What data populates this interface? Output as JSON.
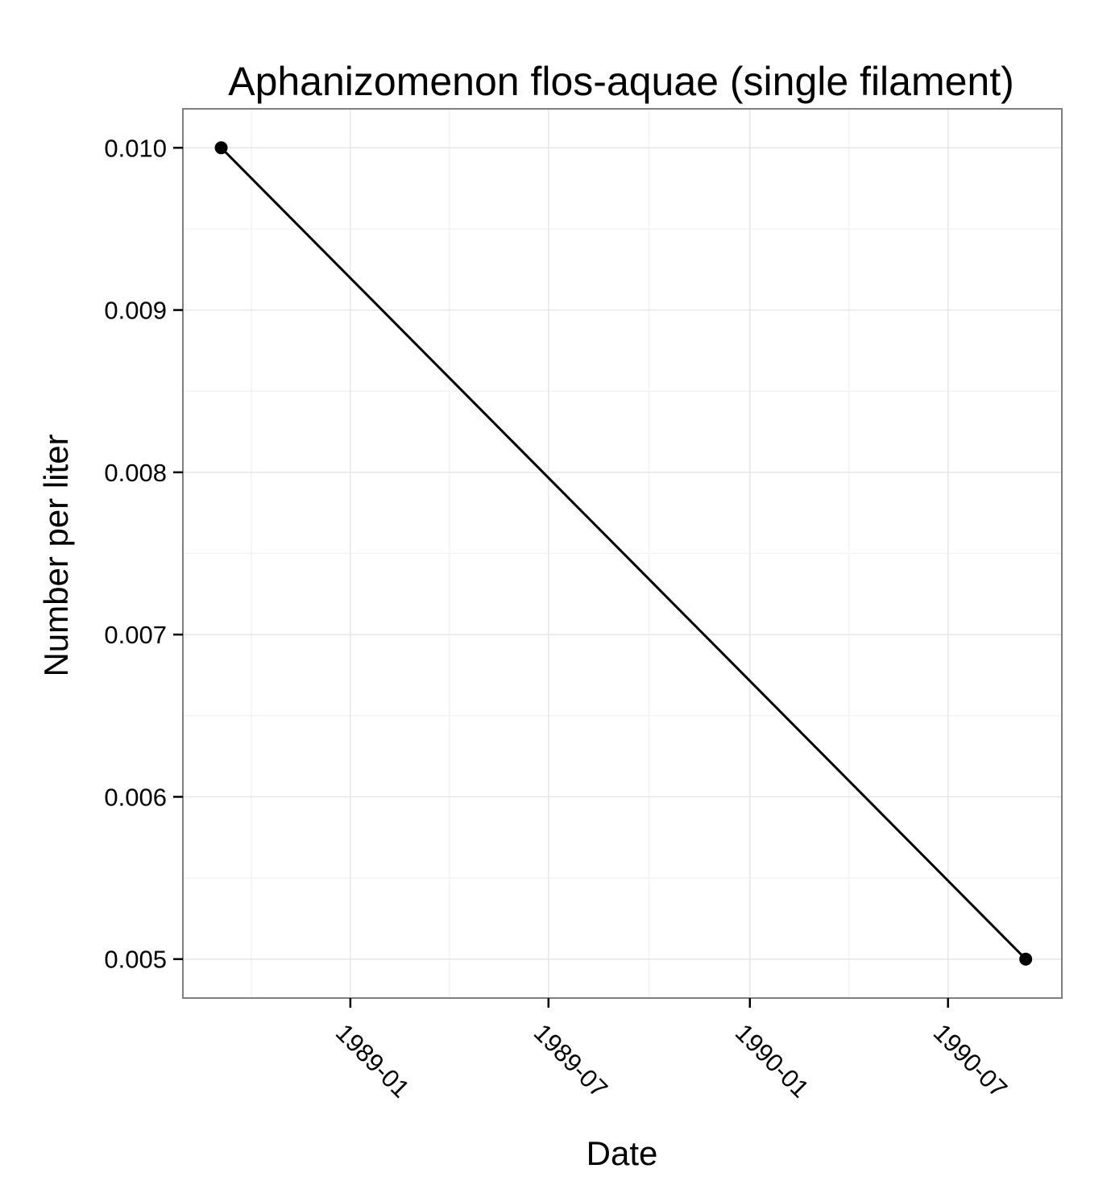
{
  "chart_data": {
    "type": "line",
    "title": "Aphanizomenon flos-aquae (single filament)",
    "xlabel": "Date",
    "ylabel": "Number per liter",
    "x_ticks": [
      {
        "date": "1989-01-01",
        "label": "1989-01"
      },
      {
        "date": "1989-07-01",
        "label": "1989-07"
      },
      {
        "date": "1990-01-01",
        "label": "1990-01"
      },
      {
        "date": "1990-07-01",
        "label": "1990-07"
      }
    ],
    "y_ticks": [
      {
        "value": 0.005,
        "label": "0.005"
      },
      {
        "value": 0.006,
        "label": "0.006"
      },
      {
        "value": 0.007,
        "label": "0.007"
      },
      {
        "value": 0.008,
        "label": "0.008"
      },
      {
        "value": 0.009,
        "label": "0.009"
      },
      {
        "value": 0.01,
        "label": "0.010"
      }
    ],
    "xlim": [
      "1988-08-01",
      "1990-10-13"
    ],
    "ylim": [
      0.00476,
      0.01024
    ],
    "grid": true,
    "series": [
      {
        "name": "Aphanizomenon flos-aquae (single filament)",
        "points": [
          {
            "x": "1988-09-05",
            "y": 0.01
          },
          {
            "x": "1990-09-10",
            "y": 0.005
          }
        ]
      }
    ]
  },
  "colors": {
    "panel_border": "#7f7f7f",
    "grid_major": "#e6e6e6",
    "grid_minor": "#f3f3f3",
    "line": "#000000",
    "point": "#000000"
  }
}
